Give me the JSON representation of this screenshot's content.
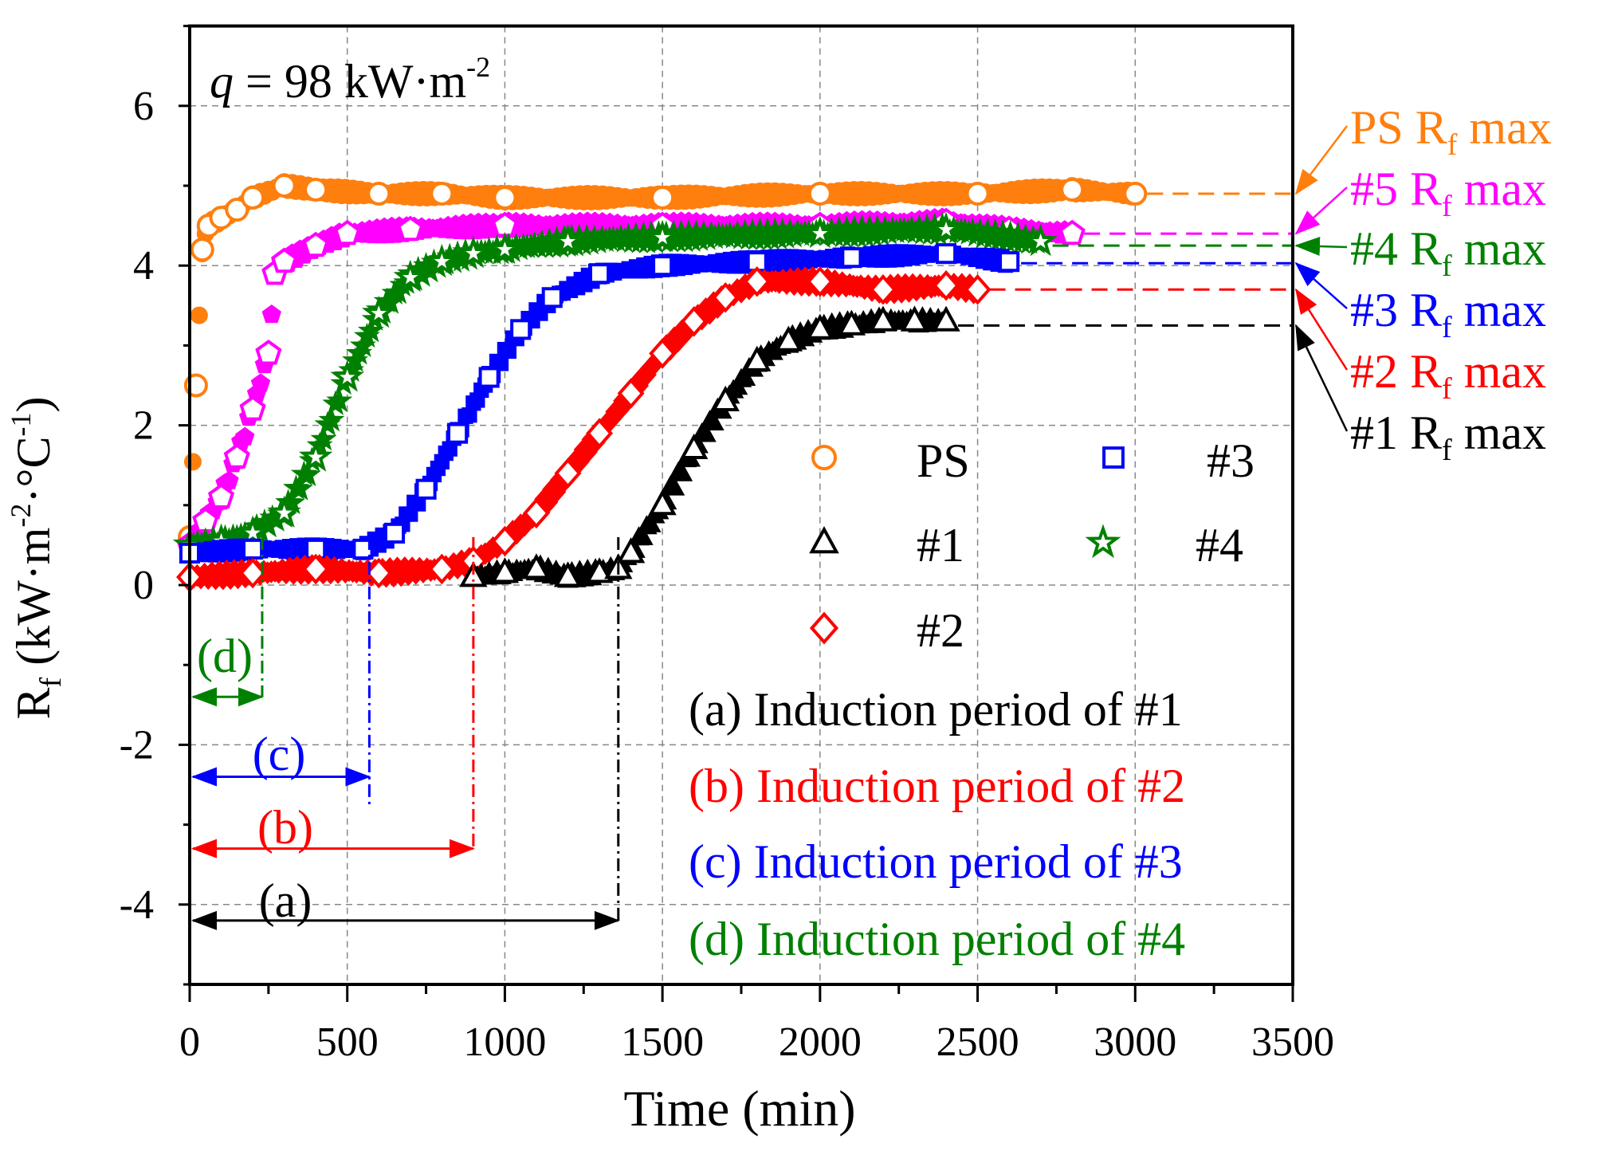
{
  "chart_data": {
    "type": "scatter",
    "title": "",
    "annotation_q": {
      "prefix": "q",
      "text": " = 98 kW·m",
      "sup": "-2"
    },
    "xlabel": "Time (min)",
    "ylabel": {
      "main": "R",
      "sub": "f",
      "rest": " (kW·m",
      "sup1": "-2",
      "mid": "·°C",
      "sup2": "-1",
      "end": ")"
    },
    "xlim": [
      0,
      3500
    ],
    "ylim": [
      -5,
      7
    ],
    "xticks": [
      0,
      500,
      1000,
      1500,
      2000,
      2500,
      3000,
      3500
    ],
    "yticks": [
      -4,
      -2,
      0,
      2,
      4,
      6
    ],
    "grid": true,
    "series": [
      {
        "name": "PS",
        "color": "#ff7f0e",
        "marker": "circle",
        "x": [
          0,
          20,
          40,
          60,
          100,
          150,
          200,
          300,
          400,
          600,
          800,
          1000,
          1500,
          2000,
          2500,
          2800,
          3000
        ],
        "y": [
          0.6,
          2.5,
          4.2,
          4.5,
          4.6,
          4.7,
          4.85,
          5.0,
          4.95,
          4.9,
          4.9,
          4.85,
          4.85,
          4.9,
          4.9,
          4.95,
          4.9
        ]
      },
      {
        "name": "#5",
        "color": "#ff00ff",
        "marker": "pentagon",
        "x": [
          0,
          50,
          100,
          150,
          200,
          250,
          270,
          300,
          400,
          500,
          700,
          1000,
          1500,
          2000,
          2400,
          2600,
          2800
        ],
        "y": [
          0.5,
          0.8,
          1.1,
          1.6,
          2.2,
          2.9,
          3.9,
          4.05,
          4.25,
          4.4,
          4.45,
          4.5,
          4.5,
          4.5,
          4.55,
          4.45,
          4.4
        ]
      },
      {
        "name": "#4",
        "color": "#008000",
        "marker": "star",
        "x": [
          0,
          100,
          200,
          300,
          400,
          500,
          600,
          700,
          800,
          900,
          1000,
          1200,
          1500,
          2000,
          2400,
          2700
        ],
        "y": [
          0.5,
          0.55,
          0.65,
          0.9,
          1.6,
          2.6,
          3.4,
          3.85,
          4.05,
          4.15,
          4.2,
          4.3,
          4.35,
          4.4,
          4.45,
          4.3
        ]
      },
      {
        "name": "#3",
        "color": "#0000ff",
        "marker": "square",
        "x": [
          0,
          200,
          400,
          550,
          650,
          750,
          850,
          950,
          1050,
          1150,
          1300,
          1500,
          1800,
          2100,
          2400,
          2600
        ],
        "y": [
          0.4,
          0.45,
          0.45,
          0.45,
          0.65,
          1.2,
          1.9,
          2.6,
          3.2,
          3.6,
          3.9,
          4.0,
          4.05,
          4.1,
          4.15,
          4.05
        ]
      },
      {
        "name": "#2",
        "color": "#ff0000",
        "marker": "diamond",
        "x": [
          0,
          200,
          400,
          600,
          800,
          900,
          1000,
          1100,
          1200,
          1300,
          1400,
          1500,
          1600,
          1700,
          1800,
          2000,
          2200,
          2400,
          2500
        ],
        "y": [
          0.1,
          0.15,
          0.2,
          0.15,
          0.2,
          0.3,
          0.55,
          0.9,
          1.4,
          1.9,
          2.4,
          2.9,
          3.3,
          3.6,
          3.8,
          3.8,
          3.7,
          3.75,
          3.7
        ]
      },
      {
        "name": "#1",
        "color": "#000000",
        "marker": "triangle",
        "x": [
          900,
          1000,
          1100,
          1200,
          1300,
          1360,
          1400,
          1500,
          1600,
          1700,
          1800,
          1900,
          2000,
          2100,
          2200,
          2300,
          2400
        ],
        "y": [
          0.1,
          0.15,
          0.2,
          0.1,
          0.15,
          0.2,
          0.4,
          1.0,
          1.7,
          2.3,
          2.8,
          3.05,
          3.2,
          3.25,
          3.3,
          3.3,
          3.3
        ]
      }
    ],
    "rf_max": [
      {
        "label": "PS R",
        "sub": "f",
        "suffix": " max",
        "value": 4.9,
        "color": "#ff7f0e",
        "from_x": 3000
      },
      {
        "label": "#5 R",
        "sub": "f",
        "suffix": " max",
        "value": 4.4,
        "color": "#ff00ff",
        "from_x": 2800
      },
      {
        "label": "#4 R",
        "sub": "f",
        "suffix": " max",
        "value": 4.25,
        "color": "#008000",
        "from_x": 2700
      },
      {
        "label": "#3 R",
        "sub": "f",
        "suffix": " max",
        "value": 4.03,
        "color": "#0000ff",
        "from_x": 2600
      },
      {
        "label": "#2 R",
        "sub": "f",
        "suffix": " max",
        "value": 3.7,
        "color": "#ff0000",
        "from_x": 2500
      },
      {
        "label": "#1 R",
        "sub": "f",
        "suffix": " max",
        "value": 3.25,
        "color": "#000000",
        "from_x": 2400
      }
    ],
    "induction_periods": [
      {
        "tag": "(a)",
        "text": "(a) Induction period of #1",
        "end_min": 1360,
        "arrow_y": -4.2,
        "color": "#000000"
      },
      {
        "tag": "(b)",
        "text": "(b) Induction period of #2",
        "end_min": 900,
        "arrow_y": -3.3,
        "color": "#ff0000"
      },
      {
        "tag": "(c)",
        "text": "(c) Induction period of #3",
        "end_min": 570,
        "arrow_y": -2.4,
        "color": "#0000ff"
      },
      {
        "tag": "(d)",
        "text": "(d) Induction period of #4",
        "end_min": 230,
        "arrow_y": -1.4,
        "color": "#008000"
      }
    ],
    "legend": {
      "placement": "center-right",
      "entries": [
        "PS",
        "#1",
        "#2",
        "#3",
        "#4"
      ]
    }
  }
}
